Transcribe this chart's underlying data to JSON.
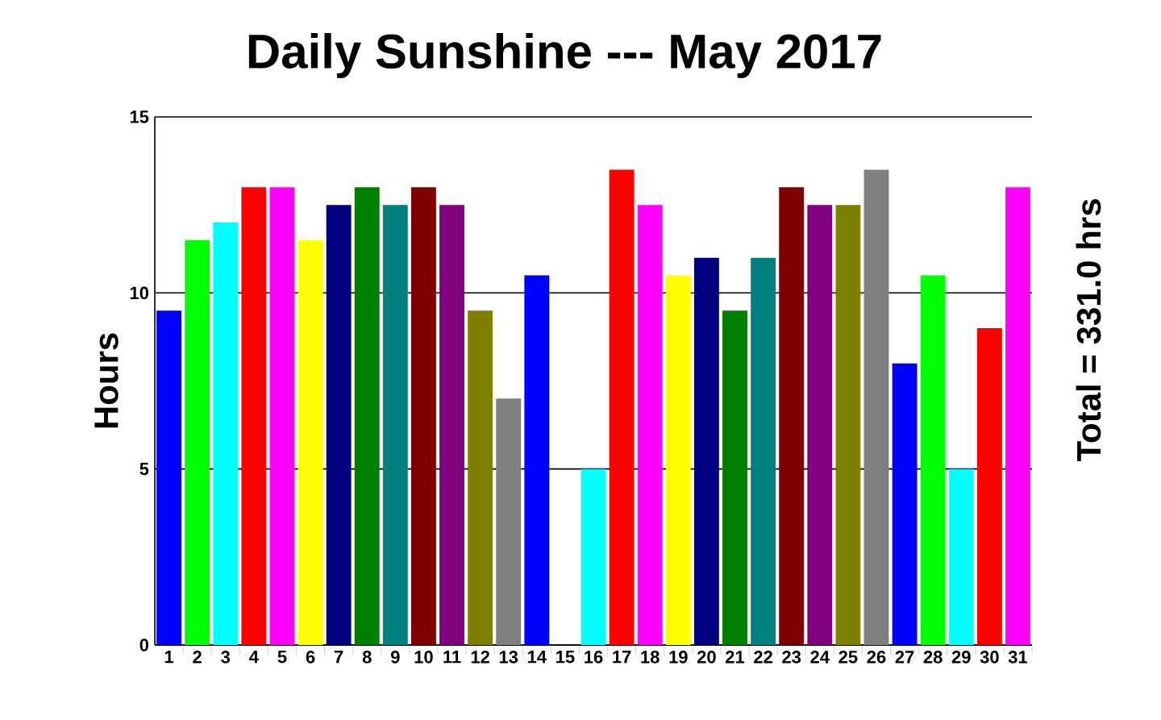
{
  "chart_data": {
    "type": "bar",
    "title": "Daily Sunshine --- May 2017",
    "ylabel": "Hours",
    "categories": [
      "1",
      "2",
      "3",
      "4",
      "5",
      "6",
      "7",
      "8",
      "9",
      "10",
      "11",
      "12",
      "13",
      "14",
      "15",
      "16",
      "17",
      "18",
      "19",
      "20",
      "21",
      "22",
      "23",
      "24",
      "25",
      "26",
      "27",
      "28",
      "29",
      "30",
      "31"
    ],
    "values": [
      9.5,
      11.5,
      12,
      13,
      13,
      11.5,
      12.5,
      13,
      12.5,
      13,
      12.5,
      9.5,
      7,
      10.5,
      0,
      5,
      13.5,
      12.5,
      10.5,
      11,
      9.5,
      11,
      13,
      12.5,
      12.5,
      13.5,
      8,
      10.5,
      5,
      9,
      13
    ],
    "colors": [
      "#0000ff",
      "#00ff00",
      "#00ffff",
      "#ff0000",
      "#ff00ff",
      "#ffff00",
      "#000080",
      "#008000",
      "#008080",
      "#800000",
      "#800080",
      "#808000",
      "#808080",
      "#0000ff",
      "#00ff00",
      "#00ffff",
      "#ff0000",
      "#ff00ff",
      "#ffff00",
      "#000080",
      "#008000",
      "#008080",
      "#800000",
      "#800080",
      "#808000",
      "#808080",
      "#0000ff",
      "#00ff00",
      "#00ffff",
      "#ff0000",
      "#ff00ff"
    ],
    "ylim": [
      0,
      15
    ],
    "yticks": [
      0,
      5,
      10,
      15
    ],
    "grid": "y",
    "annotations": [
      "Total = 331.0 hrs"
    ]
  }
}
